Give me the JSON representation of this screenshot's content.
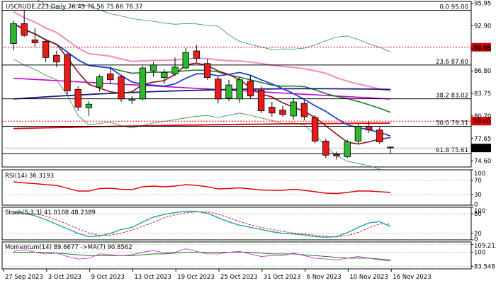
{
  "chart_data": {
    "type": "candlestick",
    "header": "USCRUDE.Z23,Daily  76.49 76.56 75.66 76.37",
    "price_axis": {
      "ylim": [
        73.8,
        96.2
      ],
      "ticks": [
        "95.95",
        "92.90",
        "89.85",
        "86.80",
        "83.75",
        "80.70",
        "77.65",
        "74.60"
      ],
      "tick_values": [
        95.95,
        92.9,
        89.85,
        86.8,
        83.75,
        80.7,
        77.65,
        74.6
      ],
      "current_price": "76.37"
    },
    "fib_levels": [
      {
        "label": "0.0 95.00",
        "value": 95.0
      },
      {
        "label": "23.6 87.60",
        "value": 87.6
      },
      {
        "label": "38.2 83.02",
        "value": 83.02
      },
      {
        "label": "50.0 79.31",
        "value": 79.31
      },
      {
        "label": "61.8 75.61",
        "value": 75.61
      }
    ],
    "red_dashed_levels": [
      {
        "label": "90.00",
        "value": 90.0
      },
      {
        "label": "80.00",
        "value": 80.0
      }
    ],
    "dates": [
      "27 Sep 2023",
      "3 Oct 2023",
      "9 Oct 2023",
      "13 Oct 2023",
      "19 Oct 2023",
      "25 Oct 2023",
      "31 Oct 2023",
      "6 Nov 2023",
      "10 Nov 2023",
      "16 Nov 2023"
    ],
    "date_index": [
      0,
      4,
      8,
      12,
      16,
      20,
      24,
      28,
      32,
      36
    ],
    "candles": [
      {
        "o": 90.5,
        "h": 93.6,
        "l": 89.6,
        "c": 93.2
      },
      {
        "o": 93.2,
        "h": 95.0,
        "l": 91.4,
        "c": 91.6
      },
      {
        "o": 91.0,
        "h": 92.6,
        "l": 90.1,
        "c": 90.6
      },
      {
        "o": 90.8,
        "h": 91.0,
        "l": 88.0,
        "c": 88.6
      },
      {
        "o": 88.9,
        "h": 89.5,
        "l": 87.3,
        "c": 88.0
      },
      {
        "o": 89.0,
        "h": 89.3,
        "l": 83.6,
        "c": 84.1
      },
      {
        "o": 84.3,
        "h": 84.7,
        "l": 81.4,
        "c": 81.9
      },
      {
        "o": 81.8,
        "h": 82.7,
        "l": 80.7,
        "c": 82.3
      },
      {
        "o": 84.6,
        "h": 86.3,
        "l": 84.0,
        "c": 86.0
      },
      {
        "o": 86.4,
        "h": 87.4,
        "l": 85.0,
        "c": 85.6
      },
      {
        "o": 86.0,
        "h": 86.3,
        "l": 82.6,
        "c": 83.0
      },
      {
        "o": 82.8,
        "h": 83.4,
        "l": 82.3,
        "c": 83.0
      },
      {
        "o": 83.0,
        "h": 87.5,
        "l": 82.8,
        "c": 87.2
      },
      {
        "o": 86.8,
        "h": 88.0,
        "l": 86.0,
        "c": 87.6
      },
      {
        "o": 85.9,
        "h": 87.0,
        "l": 85.0,
        "c": 86.6
      },
      {
        "o": 86.4,
        "h": 88.6,
        "l": 86.1,
        "c": 87.3
      },
      {
        "o": 87.2,
        "h": 89.9,
        "l": 87.0,
        "c": 89.3
      },
      {
        "o": 89.5,
        "h": 90.3,
        "l": 88.0,
        "c": 88.5
      },
      {
        "o": 87.8,
        "h": 88.4,
        "l": 85.6,
        "c": 85.9
      },
      {
        "o": 85.7,
        "h": 86.0,
        "l": 82.4,
        "c": 83.0
      },
      {
        "o": 83.1,
        "h": 85.6,
        "l": 82.7,
        "c": 84.9
      },
      {
        "o": 83.0,
        "h": 86.0,
        "l": 82.5,
        "c": 85.6
      },
      {
        "o": 85.4,
        "h": 86.2,
        "l": 83.0,
        "c": 83.4
      },
      {
        "o": 84.2,
        "h": 84.7,
        "l": 81.1,
        "c": 81.4
      },
      {
        "o": 81.9,
        "h": 82.6,
        "l": 80.6,
        "c": 81.1
      },
      {
        "o": 81.5,
        "h": 82.1,
        "l": 80.6,
        "c": 80.9
      },
      {
        "o": 80.7,
        "h": 83.2,
        "l": 80.2,
        "c": 82.6
      },
      {
        "o": 82.4,
        "h": 82.8,
        "l": 80.1,
        "c": 80.6
      },
      {
        "o": 80.5,
        "h": 80.8,
        "l": 77.0,
        "c": 77.3
      },
      {
        "o": 77.3,
        "h": 77.6,
        "l": 75.0,
        "c": 75.4
      },
      {
        "o": 75.5,
        "h": 75.9,
        "l": 74.8,
        "c": 75.3
      },
      {
        "o": 75.2,
        "h": 77.5,
        "l": 75.0,
        "c": 77.2
      },
      {
        "o": 77.3,
        "h": 79.6,
        "l": 77.0,
        "c": 79.3
      },
      {
        "o": 79.3,
        "h": 80.0,
        "l": 78.4,
        "c": 78.8
      },
      {
        "o": 78.8,
        "h": 79.2,
        "l": 76.9,
        "c": 77.2
      },
      {
        "o": 76.49,
        "h": 76.56,
        "l": 75.66,
        "c": 76.37
      }
    ],
    "rsi": {
      "label": "RSI(14) 36.3193",
      "ylim": [
        0,
        100
      ],
      "ticks": [
        "100",
        "70",
        "30",
        "0"
      ],
      "tick_values": [
        100,
        70,
        30,
        0
      ],
      "values": [
        66,
        63,
        61,
        58,
        56,
        48,
        40,
        40,
        47,
        48,
        45,
        44,
        52,
        54,
        52,
        54,
        58,
        56,
        52,
        46,
        47,
        49,
        46,
        43,
        42,
        42,
        45,
        42,
        38,
        34,
        33,
        36,
        40,
        40,
        38,
        36
      ]
    },
    "stoch": {
      "label": "Stoch(5,3,3) 41.0108 48.2389",
      "ylim": [
        0,
        100
      ],
      "ticks": [
        "100",
        "80",
        "20",
        "0"
      ],
      "tick_values": [
        100,
        80,
        20,
        0
      ],
      "k": [
        85,
        82,
        74,
        62,
        48,
        34,
        20,
        10,
        12,
        20,
        32,
        38,
        55,
        70,
        78,
        84,
        88,
        87,
        82,
        68,
        55,
        45,
        38,
        32,
        25,
        20,
        18,
        15,
        10,
        8,
        10,
        22,
        38,
        52,
        56,
        41
      ],
      "d": [
        80,
        82,
        80,
        73,
        61,
        48,
        34,
        21,
        14,
        14,
        21,
        30,
        42,
        54,
        68,
        77,
        83,
        86,
        86,
        79,
        68,
        56,
        46,
        38,
        32,
        26,
        21,
        18,
        14,
        11,
        9,
        13,
        23,
        37,
        49,
        48
      ]
    },
    "momentum": {
      "label": "Momentum(14) 89.6677 ->MA(7) 90.8562",
      "ylim": [
        80.5,
        112
      ],
      "ticks": [
        "109.2137",
        "100",
        "83.548"
      ],
      "tick_values": [
        109.2137,
        100,
        83.548
      ],
      "values": [
        101,
        103,
        100,
        98,
        99,
        95,
        92,
        93,
        98,
        97,
        96,
        97,
        100,
        102,
        99,
        100,
        104,
        101,
        98,
        98,
        100,
        101,
        98,
        95,
        96,
        96,
        99,
        96,
        93,
        92,
        91,
        93,
        95,
        93,
        91,
        89.7
      ],
      "ma": [
        100,
        100,
        100,
        100,
        99,
        98,
        97,
        96,
        96,
        96,
        96,
        96,
        97,
        98,
        98,
        99,
        100,
        100,
        100,
        100,
        100,
        100,
        100,
        99,
        98,
        98,
        98,
        97,
        96,
        95,
        94,
        93,
        93,
        93,
        92,
        90.9
      ]
    }
  }
}
